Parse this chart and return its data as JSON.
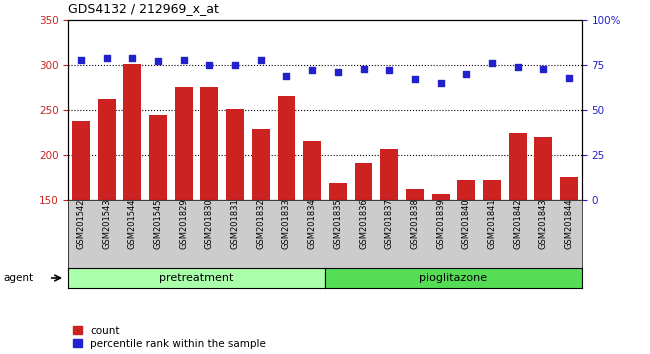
{
  "title": "GDS4132 / 212969_x_at",
  "samples": [
    "GSM201542",
    "GSM201543",
    "GSM201544",
    "GSM201545",
    "GSM201829",
    "GSM201830",
    "GSM201831",
    "GSM201832",
    "GSM201833",
    "GSM201834",
    "GSM201835",
    "GSM201836",
    "GSM201837",
    "GSM201838",
    "GSM201839",
    "GSM201840",
    "GSM201841",
    "GSM201842",
    "GSM201843",
    "GSM201844"
  ],
  "counts": [
    238,
    262,
    301,
    245,
    276,
    276,
    251,
    229,
    266,
    216,
    169,
    191,
    207,
    162,
    157,
    172,
    172,
    224,
    220,
    176
  ],
  "percentile_ranks": [
    78,
    79,
    79,
    77,
    78,
    75,
    75,
    78,
    69,
    72,
    71,
    73,
    72,
    67,
    65,
    70,
    76,
    74,
    73,
    68
  ],
  "pretreatment_count": 10,
  "pioglitazone_count": 10,
  "bar_color": "#cc2222",
  "dot_color": "#2222cc",
  "pretreatment_color": "#aaffaa",
  "pioglitazone_color": "#55dd55",
  "xlabels_bg": "#cccccc",
  "ylim_left": [
    150,
    350
  ],
  "ylim_right": [
    0,
    100
  ],
  "yticks_left": [
    150,
    200,
    250,
    300,
    350
  ],
  "yticks_right": [
    0,
    25,
    50,
    75,
    100
  ],
  "yticklabels_right": [
    "0",
    "25",
    "50",
    "75",
    "100%"
  ],
  "grid_values": [
    200,
    250,
    300
  ],
  "legend_count_label": "count",
  "legend_percentile_label": "percentile rank within the sample",
  "agent_label": "agent",
  "pretreatment_label": "pretreatment",
  "pioglitazone_label": "pioglitazone"
}
